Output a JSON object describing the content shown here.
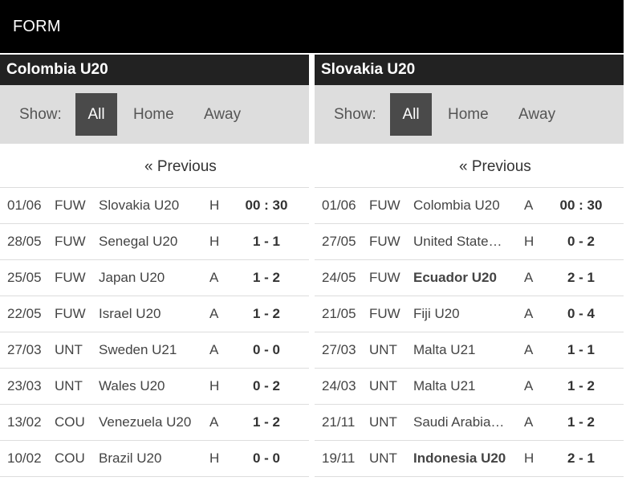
{
  "section_title": "FORM",
  "labels": {
    "show": "Show:",
    "filter_all": "All",
    "filter_home": "Home",
    "filter_away": "Away",
    "previous": "« Previous"
  },
  "teams": [
    {
      "name": "Colombia U20",
      "matches": [
        {
          "date": "01/06",
          "comp": "FUW",
          "opponent": "Slovakia U20",
          "ha": "H",
          "score": "00 : 30",
          "bold": false
        },
        {
          "date": "28/05",
          "comp": "FUW",
          "opponent": "Senegal U20",
          "ha": "H",
          "score": "1 - 1",
          "bold": false
        },
        {
          "date": "25/05",
          "comp": "FUW",
          "opponent": "Japan U20",
          "ha": "A",
          "score": "1 - 2",
          "bold": false
        },
        {
          "date": "22/05",
          "comp": "FUW",
          "opponent": "Israel U20",
          "ha": "A",
          "score": "1 - 2",
          "bold": false
        },
        {
          "date": "27/03",
          "comp": "UNT",
          "opponent": "Sweden U21",
          "ha": "A",
          "score": "0 - 0",
          "bold": false
        },
        {
          "date": "23/03",
          "comp": "UNT",
          "opponent": "Wales U20",
          "ha": "H",
          "score": "0 - 2",
          "bold": false
        },
        {
          "date": "13/02",
          "comp": "COU",
          "opponent": "Venezuela U20",
          "ha": "A",
          "score": "1 - 2",
          "bold": false
        },
        {
          "date": "10/02",
          "comp": "COU",
          "opponent": "Brazil U20",
          "ha": "H",
          "score": "0 - 0",
          "bold": false
        }
      ]
    },
    {
      "name": "Slovakia U20",
      "matches": [
        {
          "date": "01/06",
          "comp": "FUW",
          "opponent": "Colombia U20",
          "ha": "A",
          "score": "00 : 30",
          "bold": false
        },
        {
          "date": "27/05",
          "comp": "FUW",
          "opponent": "United State…",
          "ha": "H",
          "score": "0 - 2",
          "bold": false
        },
        {
          "date": "24/05",
          "comp": "FUW",
          "opponent": "Ecuador U20",
          "ha": "A",
          "score": "2 - 1",
          "bold": true
        },
        {
          "date": "21/05",
          "comp": "FUW",
          "opponent": "Fiji U20",
          "ha": "A",
          "score": "0 - 4",
          "bold": false
        },
        {
          "date": "27/03",
          "comp": "UNT",
          "opponent": "Malta U21",
          "ha": "A",
          "score": "1 - 1",
          "bold": false
        },
        {
          "date": "24/03",
          "comp": "UNT",
          "opponent": "Malta U21",
          "ha": "A",
          "score": "1 - 2",
          "bold": false
        },
        {
          "date": "21/11",
          "comp": "UNT",
          "opponent": "Saudi Arabia…",
          "ha": "A",
          "score": "1 - 2",
          "bold": false
        },
        {
          "date": "19/11",
          "comp": "UNT",
          "opponent": "Indonesia U20",
          "ha": "H",
          "score": "2 - 1",
          "bold": true
        }
      ]
    }
  ]
}
